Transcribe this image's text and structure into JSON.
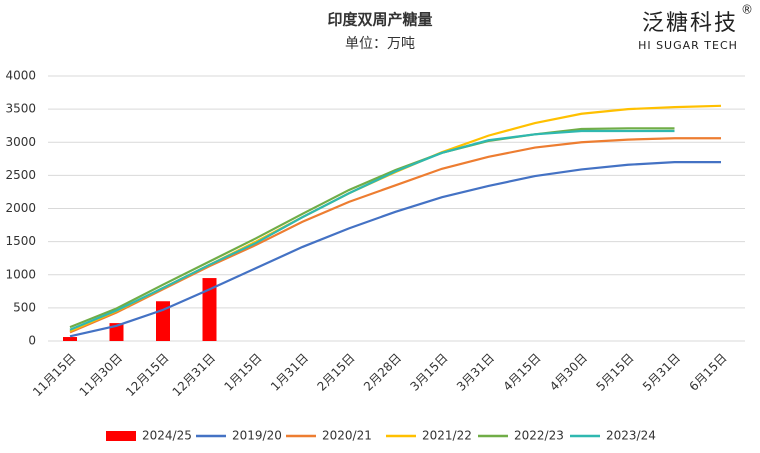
{
  "logo": {
    "text": "泛糖科技",
    "mark": "®",
    "subtitle": "HI SUGAR TECH"
  },
  "chart_data": {
    "type": "line",
    "title": "印度双周产糖量",
    "subtitle": "单位：万吨",
    "categories": [
      "11月15日",
      "11月30日",
      "12月15日",
      "12月31日",
      "1月15日",
      "1月31日",
      "2月15日",
      "2月28日",
      "3月15日",
      "3月31日",
      "4月15日",
      "4月30日",
      "5月15日",
      "5月31日",
      "6月15日"
    ],
    "series": [
      {
        "name": "2024/25",
        "color": "#ff0000",
        "type": "bar",
        "values": [
          60,
          270,
          600,
          950,
          null,
          null,
          null,
          null,
          null,
          null,
          null,
          null,
          null,
          null,
          null
        ]
      },
      {
        "name": "2019/20",
        "color": "#4472c4",
        "values": [
          70,
          230,
          470,
          780,
          1100,
          1420,
          1700,
          1950,
          2170,
          2340,
          2490,
          2590,
          2660,
          2700,
          2700
        ]
      },
      {
        "name": "2020/21",
        "color": "#ed7d31",
        "values": [
          130,
          430,
          780,
          1130,
          1450,
          1800,
          2100,
          2350,
          2600,
          2780,
          2920,
          3000,
          3040,
          3060,
          3060
        ]
      },
      {
        "name": "2021/22",
        "color": "#ffc000",
        "values": [
          150,
          450,
          800,
          1150,
          1500,
          1870,
          2230,
          2550,
          2850,
          3100,
          3290,
          3430,
          3500,
          3530,
          3550
        ]
      },
      {
        "name": "2022/23",
        "color": "#70ad47",
        "values": [
          210,
          490,
          850,
          1200,
          1550,
          1920,
          2280,
          2580,
          2840,
          3020,
          3120,
          3200,
          3210,
          3210,
          null
        ]
      },
      {
        "name": "2023/24",
        "color": "#2fb8b0",
        "values": [
          170,
          460,
          800,
          1150,
          1480,
          1870,
          2230,
          2560,
          2840,
          3030,
          3120,
          3170,
          3170,
          3170,
          null
        ]
      }
    ],
    "ylim": [
      0,
      4000
    ],
    "yticks": [
      0,
      500,
      1000,
      1500,
      2000,
      2500,
      3000,
      3500,
      4000
    ],
    "grid": true,
    "legend": "bottom"
  }
}
